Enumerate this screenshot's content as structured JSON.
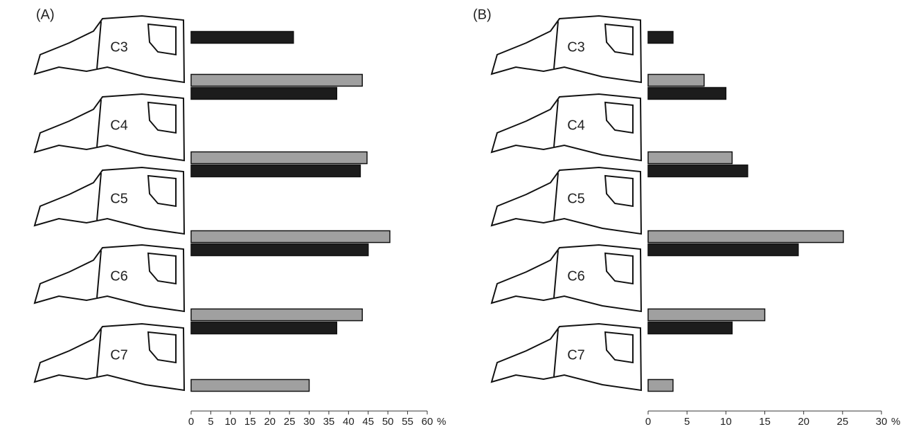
{
  "chart_data": [
    {
      "type": "bar",
      "label": "(A)",
      "categories": [
        null,
        null,
        null,
        null,
        null,
        null
      ],
      "vertebrae": [
        "C3",
        "C4",
        "C5",
        "C6",
        "C7"
      ],
      "series": [
        {
          "color": "#a0a0a0",
          "values": [
            null,
            43.5,
            44.7,
            50.5,
            43.5,
            30
          ]
        },
        {
          "color": "#1c1c1c",
          "values": [
            26,
            37,
            43,
            45,
            37,
            null
          ]
        }
      ],
      "xlim": [
        0,
        60
      ],
      "xticks": [
        0,
        5,
        10,
        15,
        20,
        25,
        30,
        35,
        40,
        45,
        50,
        55,
        60
      ],
      "xlabel": "%"
    },
    {
      "type": "bar",
      "label": "(B)",
      "categories": [
        null,
        null,
        null,
        null,
        null,
        null
      ],
      "vertebrae": [
        "C3",
        "C4",
        "C5",
        "C6",
        "C7"
      ],
      "series": [
        {
          "color": "#a0a0a0",
          "values": [
            null,
            7.2,
            10.8,
            25.1,
            15,
            3.2
          ]
        },
        {
          "color": "#1c1c1c",
          "values": [
            3.2,
            10,
            12.8,
            19.3,
            10.8,
            null
          ]
        }
      ],
      "xlim": [
        0,
        30
      ],
      "xticks": [
        0,
        5,
        10,
        15,
        20,
        25,
        30
      ],
      "xlabel": "%"
    }
  ]
}
